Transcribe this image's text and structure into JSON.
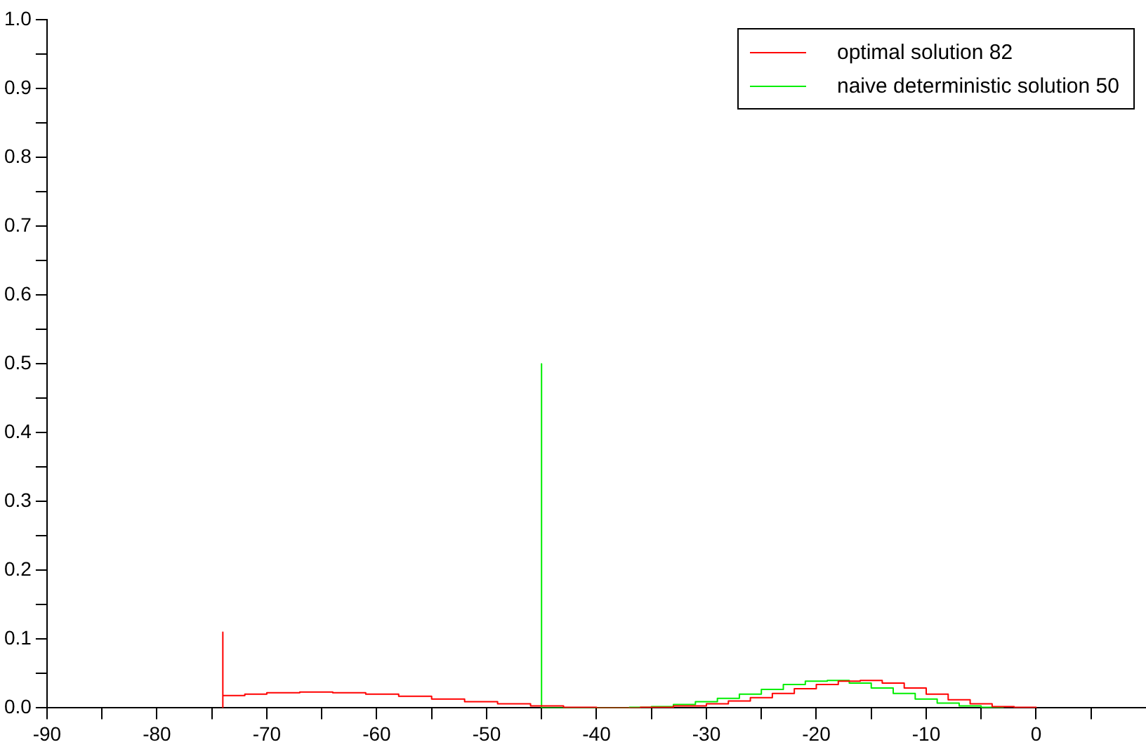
{
  "chart_data": {
    "type": "step",
    "xlim": [
      -90,
      10
    ],
    "ylim": [
      0,
      1
    ],
    "xticks": [
      -90,
      {
        "value": -85,
        "label": null
      },
      -80,
      {
        "value": -75,
        "label": null
      },
      -70,
      {
        "value": -65,
        "label": null
      },
      -60,
      {
        "value": -55,
        "label": null
      },
      -50,
      {
        "value": -45,
        "label": null
      },
      -40,
      {
        "value": -35,
        "label": null
      },
      -30,
      {
        "value": -25,
        "label": null
      },
      -20,
      {
        "value": -15,
        "label": null
      },
      -10,
      {
        "value": -5,
        "label": null
      },
      0,
      {
        "value": 5,
        "label": null
      }
    ],
    "yticks": [
      {
        "value": 0,
        "label": "0.0"
      },
      {
        "value": 0.05,
        "label": null
      },
      0.1,
      {
        "value": 0.15,
        "label": null
      },
      0.2,
      {
        "value": 0.25,
        "label": null
      },
      0.3,
      {
        "value": 0.35,
        "label": null
      },
      0.4,
      {
        "value": 0.45,
        "label": null
      },
      0.5,
      {
        "value": 0.55,
        "label": null
      },
      0.6,
      {
        "value": 0.65,
        "label": null
      },
      0.7,
      {
        "value": 0.75,
        "label": null
      },
      0.8,
      {
        "value": 0.85,
        "label": null
      },
      0.9,
      {
        "value": 0.95,
        "label": null
      },
      {
        "value": 1,
        "label": "1.0"
      }
    ],
    "grid": false,
    "legend": "top right",
    "marker": "none",
    "line_style": "solid",
    "series": [
      {
        "name": "optimal solution 82",
        "color": "#ff0000",
        "x": [
          -74,
          -74,
          -74,
          -72,
          -70,
          -67,
          -64,
          -61,
          -58,
          -55,
          -52,
          -49,
          -46,
          -43,
          -40,
          -36,
          -33,
          -30,
          -28,
          -26,
          -24,
          -22,
          -20,
          -18,
          -16,
          -14,
          -12,
          -10,
          -8,
          -6,
          -4,
          -2,
          0
        ],
        "values": [
          0,
          0.11,
          0.018,
          0.02,
          0.022,
          0.023,
          0.022,
          0.02,
          0.017,
          0.013,
          0.009,
          0.006,
          0.003,
          0.001,
          0,
          0.001,
          0.003,
          0.006,
          0.01,
          0.015,
          0.021,
          0.028,
          0.034,
          0.039,
          0.04,
          0.036,
          0.029,
          0.02,
          0.012,
          0.006,
          0.002,
          0.001,
          0
        ]
      },
      {
        "name": "naive deterministic solution 50",
        "color": "#00ee00",
        "x": [
          -45,
          -45,
          -45,
          -40,
          -37,
          -35,
          -33,
          -31,
          -29,
          -27,
          -25,
          -23,
          -21,
          -19,
          -17,
          -15,
          -13,
          -11,
          -9,
          -7,
          -5,
          -3
        ],
        "values": [
          0,
          0.5,
          0,
          0,
          0.001,
          0.002,
          0.005,
          0.009,
          0.014,
          0.02,
          0.027,
          0.034,
          0.039,
          0.04,
          0.036,
          0.029,
          0.021,
          0.013,
          0.007,
          0.003,
          0.001,
          0
        ]
      }
    ]
  }
}
